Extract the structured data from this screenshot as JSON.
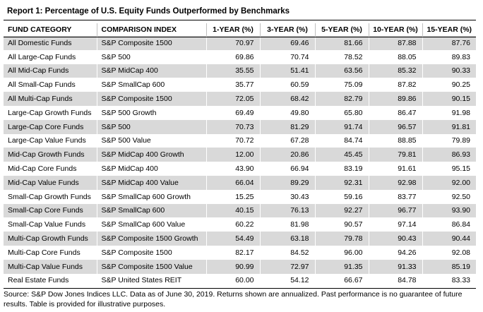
{
  "report": {
    "title": "Report 1: Percentage of U.S. Equity Funds Outperformed by Benchmarks",
    "columns": [
      "FUND CATEGORY",
      "COMPARISON INDEX",
      "1-YEAR (%)",
      "3-YEAR (%)",
      "5-YEAR (%)",
      "10-YEAR (%)",
      "15-YEAR (%)"
    ],
    "rows": [
      [
        "All Domestic Funds",
        "S&P Composite 1500",
        "70.97",
        "69.46",
        "81.66",
        "87.88",
        "87.76"
      ],
      [
        "All Large-Cap Funds",
        "S&P 500",
        "69.86",
        "70.74",
        "78.52",
        "88.05",
        "89.83"
      ],
      [
        "All Mid-Cap Funds",
        "S&P MidCap 400",
        "35.55",
        "51.41",
        "63.56",
        "85.32",
        "90.33"
      ],
      [
        "All Small-Cap Funds",
        "S&P SmallCap 600",
        "35.77",
        "60.59",
        "75.09",
        "87.82",
        "90.25"
      ],
      [
        "All Multi-Cap Funds",
        "S&P Composite 1500",
        "72.05",
        "68.42",
        "82.79",
        "89.86",
        "90.15"
      ],
      [
        "Large-Cap Growth Funds",
        "S&P 500 Growth",
        "69.49",
        "49.80",
        "65.80",
        "86.47",
        "91.98"
      ],
      [
        "Large-Cap Core Funds",
        "S&P 500",
        "70.73",
        "81.29",
        "91.74",
        "96.57",
        "91.81"
      ],
      [
        "Large-Cap Value Funds",
        "S&P 500 Value",
        "70.72",
        "67.28",
        "84.74",
        "88.85",
        "79.89"
      ],
      [
        "Mid-Cap Growth Funds",
        "S&P MidCap 400 Growth",
        "12.00",
        "20.86",
        "45.45",
        "79.81",
        "86.93"
      ],
      [
        "Mid-Cap Core Funds",
        "S&P MidCap 400",
        "43.90",
        "66.94",
        "83.19",
        "91.61",
        "95.15"
      ],
      [
        "Mid-Cap Value Funds",
        "S&P MidCap 400 Value",
        "66.04",
        "89.29",
        "92.31",
        "92.98",
        "92.00"
      ],
      [
        "Small-Cap Growth Funds",
        "S&P SmallCap 600 Growth",
        "15.25",
        "30.43",
        "59.16",
        "83.77",
        "92.50"
      ],
      [
        "Small-Cap Core Funds",
        "S&P SmallCap 600",
        "40.15",
        "76.13",
        "92.27",
        "96.77",
        "93.90"
      ],
      [
        "Small-Cap Value Funds",
        "S&P SmallCap 600 Value",
        "60.22",
        "81.98",
        "90.57",
        "97.14",
        "86.84"
      ],
      [
        "Multi-Cap Growth Funds",
        "S&P Composite 1500 Growth",
        "54.49",
        "63.18",
        "79.78",
        "90.43",
        "90.44"
      ],
      [
        "Multi-Cap Core Funds",
        "S&P Composite 1500",
        "82.17",
        "84.52",
        "96.00",
        "94.26",
        "92.08"
      ],
      [
        "Multi-Cap Value Funds",
        "S&P Composite 1500 Value",
        "90.99",
        "72.97",
        "91.35",
        "91.33",
        "85.19"
      ],
      [
        "Real Estate Funds",
        "S&P United States REIT",
        "60.00",
        "54.12",
        "66.67",
        "84.78",
        "83.33"
      ]
    ],
    "footnote": "Source: S&P Dow Jones Indices LLC.  Data as of June 30, 2019.  Returns shown are annualized.  Past performance is no guarantee of future results.  Table is provided for illustrative purposes.",
    "colors": {
      "band": "#d9d9d9",
      "rule": "#000000"
    }
  }
}
